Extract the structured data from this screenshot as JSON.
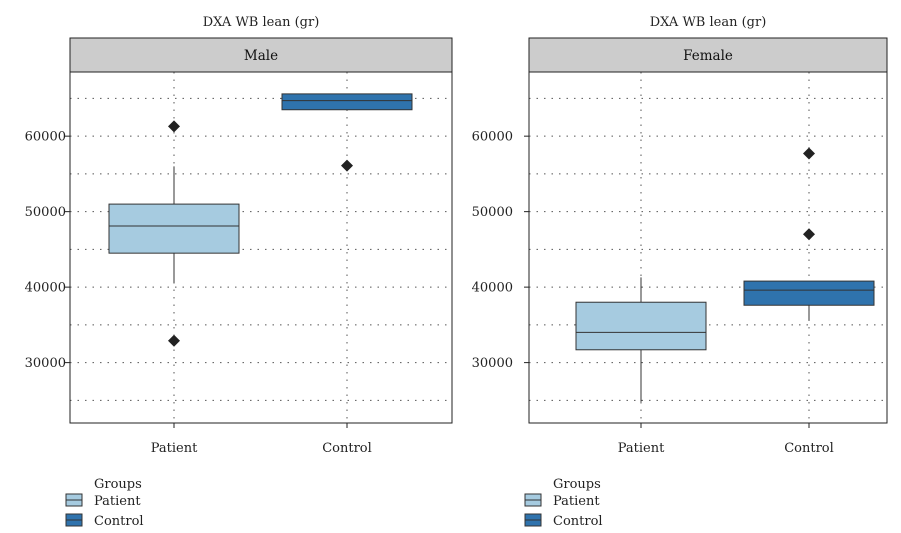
{
  "chart_data": [
    {
      "type": "boxplot",
      "title": "DXA WB lean (gr)",
      "panel": "Male",
      "categories": [
        "Patient",
        "Control"
      ],
      "ylim": [
        22000,
        68500
      ],
      "yticks": [
        30000,
        40000,
        50000,
        60000
      ],
      "grid": true,
      "series": [
        {
          "name": "Patient",
          "color": "#a6cbe0",
          "min": 40500,
          "q1": 44500,
          "median": 48100,
          "q3": 51000,
          "max": 56000,
          "outliers": [
            61300,
            32900
          ]
        },
        {
          "name": "Control",
          "color": "#2f73ad",
          "min": 63500,
          "q1": 63500,
          "median": 64700,
          "q3": 65600,
          "max": 65600,
          "outliers": [
            56100
          ]
        }
      ]
    },
    {
      "type": "boxplot",
      "title": "DXA WB lean (gr)",
      "panel": "Female",
      "categories": [
        "Patient",
        "Control"
      ],
      "ylim": [
        22000,
        68500
      ],
      "yticks": [
        30000,
        40000,
        50000,
        60000
      ],
      "grid": true,
      "series": [
        {
          "name": "Patient",
          "color": "#a6cbe0",
          "min": 24800,
          "q1": 31700,
          "median": 34000,
          "q3": 38000,
          "max": 41300,
          "outliers": []
        },
        {
          "name": "Control",
          "color": "#2f73ad",
          "min": 35600,
          "q1": 37600,
          "median": 39600,
          "q3": 40800,
          "max": 40800,
          "outliers": [
            57700,
            47000
          ]
        }
      ]
    }
  ],
  "legend": {
    "title": "Groups",
    "items": [
      {
        "label": "Patient",
        "color": "#a6cbe0"
      },
      {
        "label": "Control",
        "color": "#2f73ad"
      }
    ]
  }
}
